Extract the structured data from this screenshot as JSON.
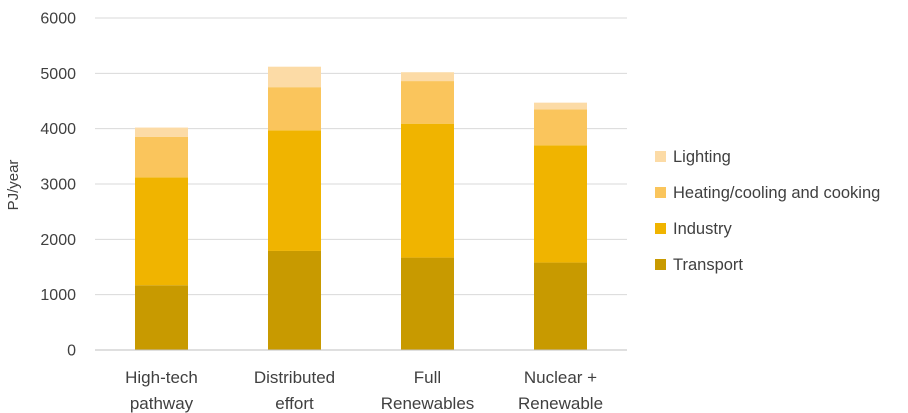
{
  "chart_data": {
    "type": "bar",
    "stacked": true,
    "ylabel": "PJ/year",
    "xlabel": "",
    "ylim": [
      0,
      6000
    ],
    "yticks": [
      0,
      1000,
      2000,
      3000,
      4000,
      5000,
      6000
    ],
    "ytick_labels": [
      "0",
      "1000",
      "2000",
      "3000",
      "4000",
      "5000",
      "6000"
    ],
    "grid": true,
    "legend_position": "right",
    "categories": [
      [
        "High-tech",
        "pathway"
      ],
      [
        "Distributed",
        "effort"
      ],
      [
        "Full",
        "Renewables"
      ],
      [
        "Nuclear +",
        "Renewable"
      ]
    ],
    "series": [
      {
        "name": "Transport",
        "color": "#C89A00",
        "values": [
          1170,
          1790,
          1670,
          1580
        ]
      },
      {
        "name": "Industry",
        "color": "#F0B400",
        "values": [
          1950,
          2180,
          2420,
          2120
        ]
      },
      {
        "name": "Heating/cooling and cooking",
        "color": "#FAC55C",
        "values": [
          730,
          780,
          770,
          650
        ]
      },
      {
        "name": "Lighting",
        "color": "#FCDBA6",
        "values": [
          170,
          370,
          160,
          120
        ]
      }
    ],
    "legend_order": [
      "Lighting",
      "Heating/cooling and cooking",
      "Industry",
      "Transport"
    ]
  }
}
